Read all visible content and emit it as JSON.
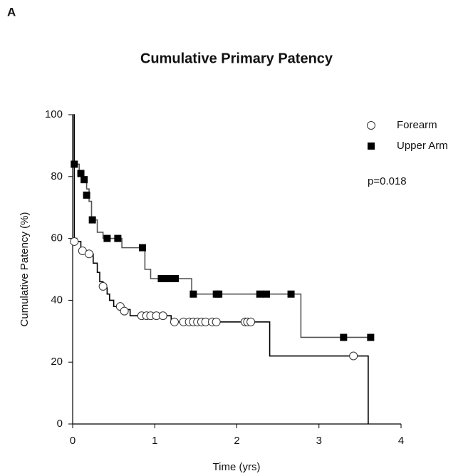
{
  "chart_data": {
    "type": "survival",
    "panel_label": "A",
    "title": "Cumulative Primary Patency",
    "x_label": "Time (yrs)",
    "y_label": "Cumulative Patency (%)",
    "annotation": "p=0.018",
    "xlim": [
      0,
      4
    ],
    "xticks": [
      0,
      1,
      2,
      3,
      4
    ],
    "ylim": [
      0,
      100
    ],
    "yticks": [
      0,
      20,
      40,
      60,
      80,
      100
    ],
    "series": [
      {
        "name": "Forearm",
        "color": "#000000",
        "marker": "circle",
        "x": [
          0,
          0.02,
          0.05,
          0.1,
          0.2,
          0.25,
          0.3,
          0.33,
          0.37,
          0.42,
          0.45,
          0.5,
          0.6,
          0.7,
          1.2,
          2.4,
          3.6
        ],
        "values": [
          100,
          60,
          59,
          56,
          55,
          52,
          49,
          46,
          44,
          42,
          40,
          38,
          37,
          35,
          33,
          22,
          0
        ],
        "censor_x": [
          0.02,
          0.12,
          0.2,
          0.37,
          0.58,
          0.63,
          0.84,
          0.9,
          0.95,
          1.02,
          1.1,
          1.24,
          1.35,
          1.42,
          1.47,
          1.52,
          1.57,
          1.62,
          1.7,
          1.75,
          2.1,
          2.13,
          2.17,
          3.42
        ],
        "censor_values": [
          59,
          56,
          55,
          44.5,
          38,
          36.5,
          35,
          35,
          35,
          35,
          35,
          33,
          33,
          33,
          33,
          33,
          33,
          33,
          33,
          33,
          33,
          33,
          33,
          22
        ]
      },
      {
        "name": "Upper Arm",
        "color": "#555555",
        "marker": "square",
        "x": [
          0,
          0.01,
          0.08,
          0.13,
          0.17,
          0.2,
          0.23,
          0.3,
          0.37,
          0.6,
          0.88,
          0.95,
          1.45,
          2.78,
          3.65
        ],
        "values": [
          100,
          84,
          82,
          79,
          76,
          72,
          66,
          62,
          60,
          57,
          50,
          47,
          42,
          28,
          28
        ],
        "censor_x": [
          0.02,
          0.1,
          0.14,
          0.17,
          0.24,
          0.42,
          0.55,
          0.85,
          1.08,
          1.13,
          1.18,
          1.25,
          1.47,
          1.75,
          1.78,
          2.28,
          2.36,
          2.66,
          3.3,
          3.63
        ],
        "censor_values": [
          84,
          81,
          79,
          74,
          66,
          60,
          60,
          57,
          47,
          47,
          47,
          47,
          42,
          42,
          42,
          42,
          42,
          42,
          28,
          28
        ]
      }
    ]
  }
}
